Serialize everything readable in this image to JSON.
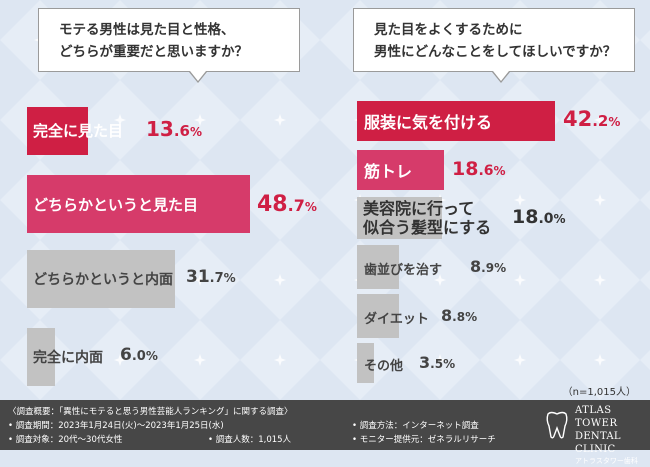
{
  "chart_data": [
    {
      "type": "bar",
      "title": "モテる男性は見た目と性格、どちらが重要だと思いますか？",
      "categories": [
        "完全に見た目",
        "どちらかというと見た目",
        "どちらかというと内面",
        "完全に内面"
      ],
      "values": [
        13.6,
        48.7,
        31.7,
        6.0
      ],
      "unit": "%",
      "colors": [
        "#cf1f44",
        "#d63b6a",
        "#c2c2c2",
        "#c2c2c2"
      ]
    },
    {
      "type": "bar",
      "title": "見た目をよくするために男性にどんなことをしてほしいですか？",
      "categories": [
        "服装に気を付ける",
        "筋トレ",
        "美容院に行って似合う髪型にする",
        "歯並びを治す",
        "ダイエット",
        "その他"
      ],
      "values": [
        42.2,
        18.6,
        18.0,
        8.9,
        8.8,
        3.5
      ],
      "unit": "%",
      "colors": [
        "#cf1f44",
        "#d63b6a",
        "#c2c2c2",
        "#c2c2c2",
        "#c2c2c2",
        "#c2c2c2"
      ],
      "note": "（n=1,015人）"
    }
  ],
  "left_question": {
    "line1": "モテる男性は見た目と性格、",
    "line2": "どちらが重要だと思いますか？"
  },
  "right_question": {
    "line1": "見た目をよくするために",
    "line2": "男性にどんなことをしてほしいですか？"
  },
  "left_bars": [
    {
      "label": "完全に見た目",
      "int": "13",
      "dec": ".6",
      "pct": "%"
    },
    {
      "label": "どちらかというと見た目",
      "int": "48",
      "dec": ".7",
      "pct": "%"
    },
    {
      "label": "どちらかというと内面",
      "int": "31",
      "dec": ".7",
      "pct": "%"
    },
    {
      "label": "完全に内面",
      "int": "6",
      "dec": ".0",
      "pct": "%"
    }
  ],
  "right_bars": [
    {
      "label": "服装に気を付ける",
      "int": "42",
      "dec": ".2",
      "pct": "%"
    },
    {
      "label": "筋トレ",
      "int": "18",
      "dec": ".6",
      "pct": "%"
    },
    {
      "label": "美容院に行って",
      "label2": "似合う髪型にする",
      "int": "18",
      "dec": ".0",
      "pct": "%"
    },
    {
      "label": "歯並びを治す",
      "int": "8",
      "dec": ".9",
      "pct": "%"
    },
    {
      "label": "ダイエット",
      "int": "8",
      "dec": ".8",
      "pct": "%"
    },
    {
      "label": "その他",
      "int": "3",
      "dec": ".5",
      "pct": "%"
    }
  ],
  "n_note": "（n=1,015人）",
  "footer": {
    "overview": "〈調査概要：「異性にモテると思う男性芸能人ランキング」に関する調査〉",
    "period": "• 調査期間：2023年1月24日(火)〜2023年1月25日(水)",
    "target": "• 調査対象：20代〜30代女性",
    "count": "• 調査人数：1,015人",
    "method": "• 調査方法：インターネット調査",
    "provider": "• モニター提供元：ゼネラルリサーチ"
  },
  "logo": {
    "line1": "ATLAS TOWER",
    "line2": "DENTAL CLINIC",
    "line3": "アトラスタワー歯科"
  },
  "colors": {
    "accent": "#cf1f44",
    "accent2": "#d63b6a",
    "gray": "#c2c2c2",
    "footer_bg": "#474747",
    "bg": "#dde6f2"
  }
}
